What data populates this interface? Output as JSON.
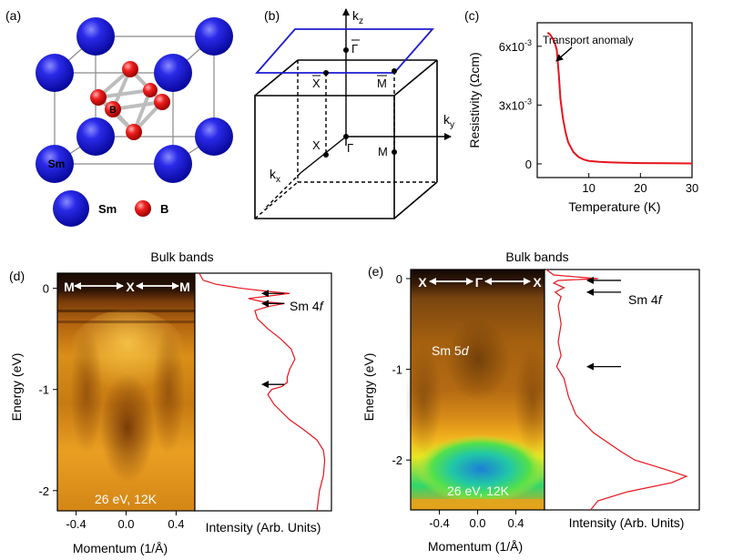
{
  "panel_labels": {
    "a": "(a)",
    "b": "(b)",
    "c": "(c)",
    "d": "(d)",
    "e": "(e)"
  },
  "panel_a": {
    "atom_label_inline": "Sm",
    "atom_label_b": "B",
    "legend_sm": "Sm",
    "legend_b": "B",
    "colors": {
      "sm": "#1c1cd4",
      "b": "#e01818"
    }
  },
  "panel_b": {
    "kz": "k",
    "kz_sub": "z",
    "ky": "k",
    "ky_sub": "y",
    "kx": "k",
    "kx_sub": "x",
    "gamma_bar": "Γ",
    "x_bar": "X",
    "m_bar": "M",
    "gamma": "Γ",
    "x": "X",
    "m": "M",
    "plane_color": "#1c1cd4"
  },
  "chart_data": [
    {
      "id": "panel_c",
      "type": "line",
      "title": "",
      "annotation": "Transport anomaly",
      "xlabel": "Temperature (K)",
      "ylabel": "Resistivity (Ωcm)",
      "xlim": [
        0,
        30
      ],
      "ylim": [
        -0.0007,
        0.0072
      ],
      "xticks": [
        10,
        20,
        30
      ],
      "xtick_labels": [
        "10",
        "20",
        "30"
      ],
      "yticks": [
        0,
        0.003,
        0.006
      ],
      "ytick_labels": [
        {
          "base": "0",
          "exp": ""
        },
        {
          "base": "3x10",
          "exp": "-3"
        },
        {
          "base": "6x10",
          "exp": "-3"
        }
      ],
      "series": [
        {
          "name": "Resistivity",
          "color": "#e8141c",
          "x": [
            2.0,
            2.5,
            3.0,
            3.5,
            3.8,
            4.2,
            4.5,
            5.0,
            5.5,
            6.0,
            7.0,
            8.0,
            9.0,
            10.0,
            12.0,
            14.0,
            16.0,
            20.0,
            25.0,
            30.0
          ],
          "y": [
            0.0067,
            0.0066,
            0.0064,
            0.0061,
            0.0058,
            0.0045,
            0.0033,
            0.0023,
            0.0016,
            0.0011,
            0.0006,
            0.00035,
            0.00022,
            0.00015,
            0.0001,
            8e-05,
            6e-05,
            4e-05,
            3e-05,
            2e-05
          ]
        }
      ]
    },
    {
      "id": "panel_d",
      "type": "heatmap",
      "title": "Bulk bands",
      "xlabel": "Momentum (1/Å)",
      "ylabel": "Energy (eV)",
      "xlim": [
        -0.55,
        0.55
      ],
      "ylim": [
        -2.2,
        0.15
      ],
      "xticks": [
        -0.4,
        0.0,
        0.4
      ],
      "xtick_labels": [
        "-0.4",
        "0.0",
        "0.4"
      ],
      "yticks": [
        0,
        -1,
        -2
      ],
      "ytick_labels": [
        "0",
        "-1",
        "-2"
      ],
      "cut_labels": [
        "M",
        "X",
        "M"
      ],
      "condition": "26 eV, 12K",
      "edc_xlabel": "Intensity (Arb. Units)",
      "edc_annotation": "Sm 4f",
      "edc_annotation_base": "Sm 4",
      "edc_annotation_ital": "f",
      "arrow_energies": [
        -0.05,
        -0.15,
        -0.95
      ],
      "edc": {
        "color": "#e8141c",
        "energy": [
          0.15,
          0.08,
          0.04,
          0.0,
          -0.03,
          -0.05,
          -0.07,
          -0.1,
          -0.13,
          -0.15,
          -0.18,
          -0.22,
          -0.3,
          -0.4,
          -0.5,
          -0.6,
          -0.7,
          -0.8,
          -0.88,
          -0.93,
          -0.97,
          -1.0,
          -1.05,
          -1.15,
          -1.3,
          -1.4,
          -1.5,
          -1.6,
          -1.7,
          -1.85,
          -2.0,
          -2.2
        ],
        "intensity": [
          0.02,
          0.05,
          0.15,
          0.35,
          0.55,
          0.72,
          0.6,
          0.4,
          0.5,
          0.68,
          0.55,
          0.45,
          0.47,
          0.55,
          0.65,
          0.73,
          0.76,
          0.72,
          0.7,
          0.7,
          0.66,
          0.58,
          0.55,
          0.6,
          0.72,
          0.83,
          0.93,
          0.98,
          0.99,
          0.98,
          0.95,
          0.93
        ]
      }
    },
    {
      "id": "panel_e",
      "type": "heatmap",
      "title": "Bulk bands",
      "xlabel": "Momentum (1/Å)",
      "ylabel": "Energy (eV)",
      "xlim": [
        -0.7,
        0.7
      ],
      "ylim": [
        -2.55,
        0.1
      ],
      "xticks": [
        -0.4,
        0.0,
        0.4
      ],
      "xtick_labels": [
        "-0.4",
        "0.0",
        "0.4"
      ],
      "yticks": [
        0,
        -1,
        -2
      ],
      "ytick_labels": [
        "0",
        "-1",
        "-2"
      ],
      "cut_labels": [
        "X",
        "Γ",
        "X"
      ],
      "band_label_base": "Sm 5",
      "band_label_ital": "d",
      "condition": "26 eV, 12K",
      "edc_xlabel": "Intensity (Arb. Units)",
      "edc_annotation": "Sm 4f",
      "edc_annotation_base": "Sm 4",
      "edc_annotation_ital": "f",
      "arrow_energies": [
        -0.02,
        -0.15,
        -0.97
      ],
      "edc": {
        "color": "#e8141c",
        "energy": [
          0.1,
          0.04,
          0.0,
          -0.02,
          -0.05,
          -0.1,
          -0.15,
          -0.2,
          -0.3,
          -0.5,
          -0.7,
          -0.85,
          -0.97,
          -1.1,
          -1.3,
          -1.5,
          -1.7,
          -1.9,
          -2.0,
          -2.1,
          -2.18,
          -2.25,
          -2.35,
          -2.45,
          -2.55
        ],
        "intensity": [
          0.0,
          0.05,
          0.35,
          0.08,
          0.05,
          0.12,
          0.06,
          0.1,
          0.08,
          0.1,
          0.08,
          0.1,
          0.07,
          0.12,
          0.15,
          0.2,
          0.32,
          0.5,
          0.6,
          0.8,
          0.95,
          0.85,
          0.55,
          0.35,
          0.3
        ]
      }
    }
  ]
}
